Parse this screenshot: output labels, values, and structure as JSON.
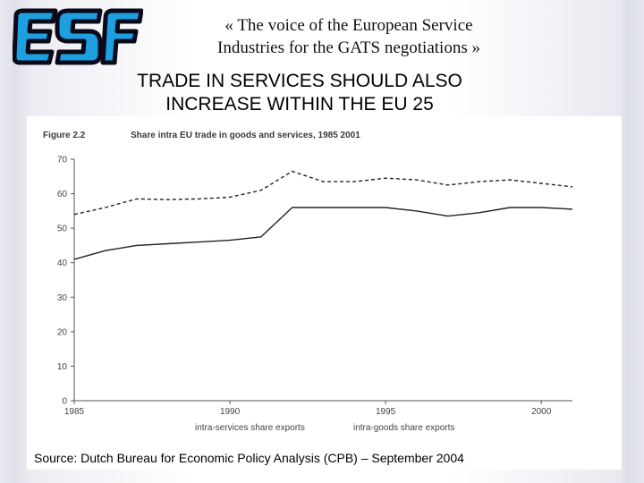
{
  "header": {
    "logo_text": "ESF",
    "tagline_line1": "« The voice of the European Service",
    "tagline_line2": "Industries for the GATS negotiations »"
  },
  "slide": {
    "headline_line1": "TRADE IN SERVICES SHOULD ALSO",
    "headline_line2": "INCREASE WITHIN THE EU 25"
  },
  "chart_data": {
    "type": "line",
    "figure_number": "Figure 2.2",
    "title": "Share intra EU trade in goods and services, 1985 2001",
    "ylim": [
      0,
      70
    ],
    "yticks": [
      0,
      10,
      20,
      30,
      40,
      50,
      60,
      70
    ],
    "xlim": [
      1985,
      2001
    ],
    "xticks": [
      1985,
      1990,
      1995,
      2000
    ],
    "grid": false,
    "legend_position": "bottom",
    "series": [
      {
        "name": "intra-services share exports",
        "style": "solid",
        "x": [
          1985,
          1986,
          1987,
          1988,
          1989,
          1990,
          1991,
          1992,
          1993,
          1994,
          1995,
          1996,
          1997,
          1998,
          1999,
          2000,
          2001
        ],
        "values": [
          41,
          43.5,
          45,
          45.5,
          46,
          46.5,
          47.5,
          56,
          56,
          56,
          56,
          55,
          53.5,
          54.5,
          56,
          56,
          55.5
        ]
      },
      {
        "name": "intra-goods share exports",
        "style": "dashed",
        "x": [
          1985,
          1986,
          1987,
          1988,
          1989,
          1990,
          1991,
          1992,
          1993,
          1994,
          1995,
          1996,
          1997,
          1998,
          1999,
          2000,
          2001
        ],
        "values": [
          54,
          56,
          58.5,
          58.3,
          58.5,
          59,
          61,
          66.5,
          63.5,
          63.5,
          64.5,
          64,
          62.5,
          63.5,
          64,
          63,
          62
        ]
      }
    ],
    "source": "Source: Dutch Bureau for Economic Policy Analysis (CPB) – September 2004"
  }
}
